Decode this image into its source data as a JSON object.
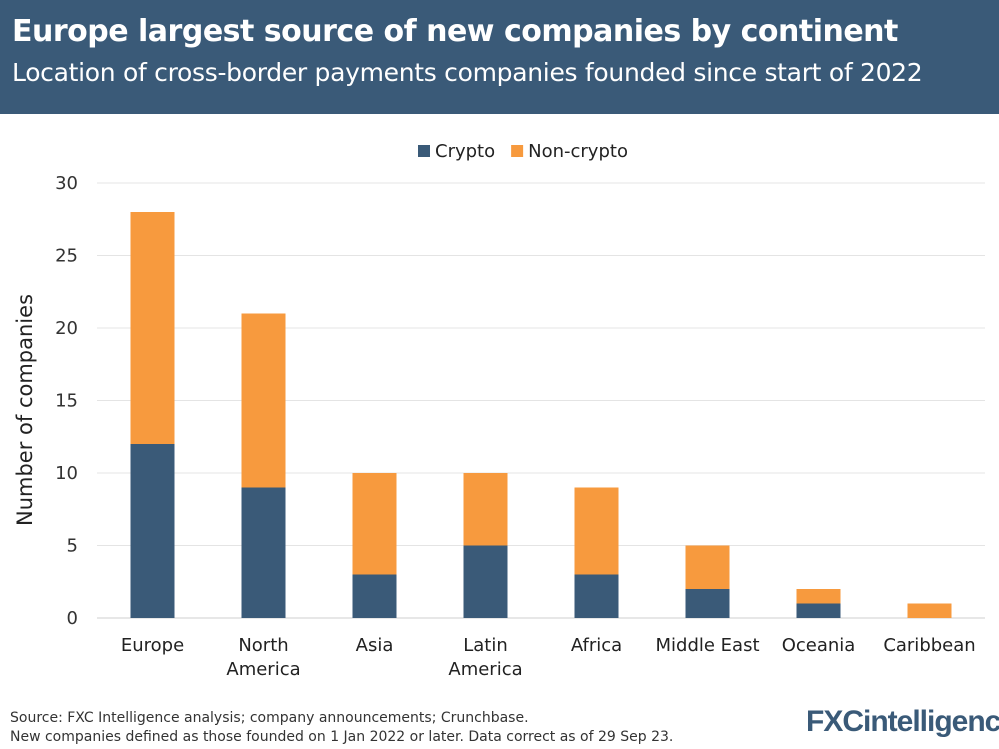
{
  "header": {
    "title": "Europe largest source of new companies by continent",
    "subtitle": "Location of cross-border payments companies founded since start of 2022"
  },
  "footer": {
    "source_line1": "Source: FXC Intelligence analysis; company announcements; Crunchbase.",
    "source_line2": "New companies defined as those founded on 1 Jan 2022 or later. Data correct as of 29 Sep 23.",
    "logo": "FXCintelligence"
  },
  "chart_data": {
    "type": "bar",
    "stacked": true,
    "categories": [
      [
        "Europe"
      ],
      [
        "North",
        "America"
      ],
      [
        "Asia"
      ],
      [
        "Latin",
        "America"
      ],
      [
        "Africa"
      ],
      [
        "Middle East"
      ],
      [
        "Oceania"
      ],
      [
        "Caribbean"
      ]
    ],
    "series": [
      {
        "name": "Crypto",
        "color": "#3a5a78",
        "values": [
          12,
          9,
          3,
          5,
          3,
          2,
          1,
          0
        ]
      },
      {
        "name": "Non-crypto",
        "color": "#f79a3e",
        "values": [
          16,
          12,
          7,
          5,
          6,
          3,
          1,
          1
        ]
      }
    ],
    "ylabel": "Number of companies",
    "ylim": [
      0,
      30
    ],
    "yticks": [
      "0",
      "5",
      "10",
      "15",
      "20",
      "25",
      "30"
    ],
    "grid": true,
    "legend": "top-center"
  }
}
